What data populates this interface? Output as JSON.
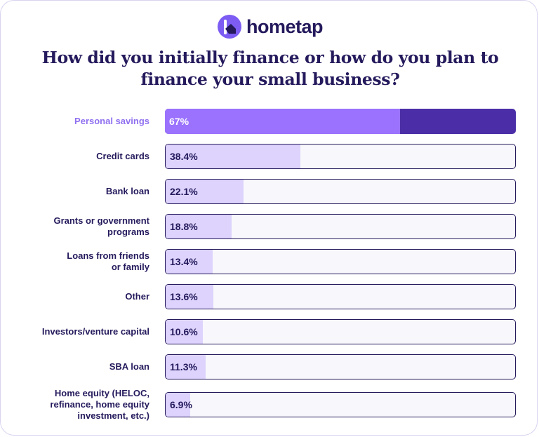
{
  "brand": {
    "name": "hometap",
    "icon": "house-arrow-logo-icon",
    "accent": "#7c5cf3",
    "dark": "#241a5c"
  },
  "chart_data": {
    "type": "bar",
    "orientation": "horizontal",
    "title": "How did you initially finance or how do you plan to finance your small business?",
    "xlim": [
      0,
      100
    ],
    "unit": "%",
    "grid": false,
    "categories": [
      "Personal savings",
      "Credit cards",
      "Bank loan",
      "Grants or government\nprograms",
      "Loans from friends\nor family",
      "Other",
      "Investors/venture capital",
      "SBA loan",
      "Home equity (HELOC,\nrefinance, home equity\ninvestment, etc.)"
    ],
    "values": [
      67,
      38.4,
      22.1,
      18.8,
      13.4,
      13.6,
      10.6,
      11.3,
      6.9
    ],
    "value_labels": [
      "67%",
      "38.4%",
      "22.1%",
      "18.8%",
      "13.4%",
      "13.6%",
      "10.6%",
      "11.3%",
      "6.9%"
    ],
    "highlighted_category": "Personal savings",
    "colors": {
      "fill": "#ddd3fc",
      "track": "#f8f7fb",
      "highlight_fill": "#9a72fd",
      "highlight_track": "#4b2ea7",
      "highlight_label": "#9070f0"
    }
  }
}
